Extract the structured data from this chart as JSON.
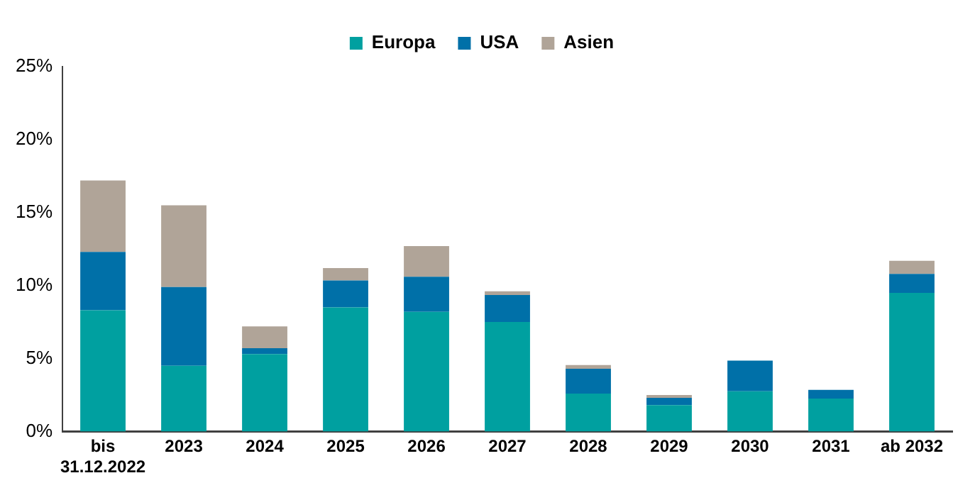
{
  "chart_data": {
    "type": "bar",
    "stacked": true,
    "categories": [
      "bis\n31.12.2022",
      "2023",
      "2024",
      "2025",
      "2026",
      "2027",
      "2028",
      "2029",
      "2030",
      "2031",
      "ab 2032"
    ],
    "series": [
      {
        "name": "Europa",
        "color": "#00a0a0",
        "values": [
          8.3,
          4.5,
          5.3,
          8.5,
          8.2,
          7.5,
          2.6,
          1.8,
          2.75,
          2.25,
          9.5
        ]
      },
      {
        "name": "USA",
        "color": "#0070a8",
        "values": [
          4.0,
          5.4,
          0.4,
          1.85,
          2.4,
          1.85,
          1.7,
          0.5,
          2.1,
          0.6,
          1.3
        ]
      },
      {
        "name": "Asien",
        "color": "#b0a498",
        "values": [
          4.9,
          5.6,
          1.5,
          0.85,
          2.1,
          0.25,
          0.25,
          0.2,
          0,
          0,
          0.9
        ]
      }
    ],
    "ylim": [
      0,
      25
    ],
    "yticks": [
      {
        "value": 0,
        "label": "0%"
      },
      {
        "value": 5,
        "label": "5%"
      },
      {
        "value": 10,
        "label": "10%"
      },
      {
        "value": 15,
        "label": "15%"
      },
      {
        "value": 20,
        "label": "20%"
      },
      {
        "value": 25,
        "label": "25%"
      }
    ],
    "grid": false,
    "legend": "top"
  }
}
